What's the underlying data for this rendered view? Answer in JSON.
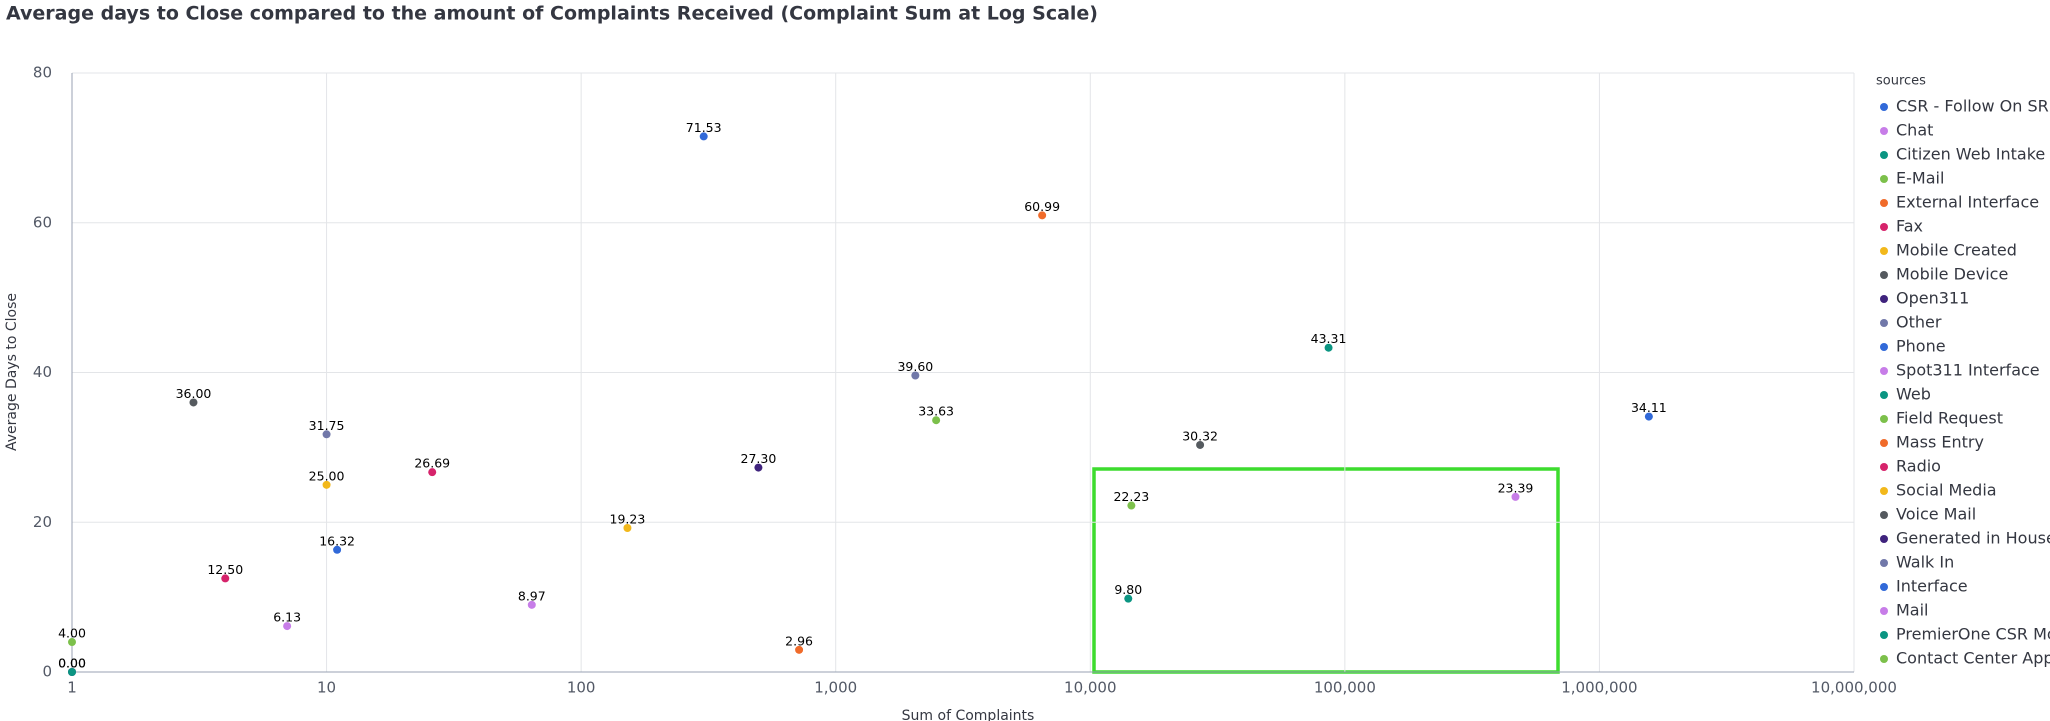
{
  "chart_data": {
    "type": "scatter",
    "title": "Average days to Close compared to the amount of Complaints Received (Complaint Sum at Log Scale)",
    "x_label": "Sum of Complaints",
    "y_label": "Average Days to Close",
    "legend_title": "sources",
    "legend": "right",
    "grid": true,
    "xscale": "log",
    "xlim": [
      1,
      10000000
    ],
    "xticks": [
      1,
      10,
      100,
      {
        "value": 1000,
        "label": "1,000"
      },
      {
        "value": 10000,
        "label": "10,000"
      },
      {
        "value": 100000,
        "label": "100,000"
      },
      {
        "value": 1000000,
        "label": "1,000,000"
      },
      {
        "value": 10000000,
        "label": "10,000,000"
      }
    ],
    "ylim": [
      0,
      80
    ],
    "yticks": [
      0,
      20,
      40,
      60,
      80
    ],
    "series": [
      {
        "name": "CSR - Follow On SR",
        "color": "#3169d8",
        "x": [
          303
        ],
        "values": [
          71.53
        ],
        "value_labels": [
          "71.53"
        ]
      },
      {
        "name": "Chat",
        "color": "#c77de8",
        "x": [
          64
        ],
        "values": [
          8.97
        ],
        "value_labels": [
          "8.97"
        ]
      },
      {
        "name": "Citizen Web Intake",
        "color": "#0b9582",
        "x": [
          14100
        ],
        "values": [
          9.8
        ],
        "value_labels": [
          "9.80"
        ]
      },
      {
        "name": "E-Mail",
        "color": "#7cc04b",
        "x": [
          2480
        ],
        "values": [
          33.63
        ],
        "value_labels": [
          "33.63"
        ]
      },
      {
        "name": "External Interface",
        "color": "#f06b2a",
        "x": [
          6470
        ],
        "values": [
          60.99
        ],
        "value_labels": [
          "60.99"
        ]
      },
      {
        "name": "Fax",
        "color": "#d6236b",
        "x": [
          4
        ],
        "values": [
          12.5
        ],
        "value_labels": [
          "12.50"
        ]
      },
      {
        "name": "Mobile Created",
        "color": "#f2b81b",
        "x": [
          152
        ],
        "values": [
          19.23
        ],
        "value_labels": [
          "19.23"
        ]
      },
      {
        "name": "Mobile Device",
        "color": "#555a5f",
        "x": [
          27000
        ],
        "values": [
          30.32
        ],
        "value_labels": [
          "30.32"
        ]
      },
      {
        "name": "Open311",
        "color": "#3f237d",
        "x": [
          497
        ],
        "values": [
          27.3
        ],
        "value_labels": [
          "27.30"
        ]
      },
      {
        "name": "Other",
        "color": "#7178a9",
        "x": [
          2055
        ],
        "values": [
          39.6
        ],
        "value_labels": [
          "39.60"
        ]
      },
      {
        "name": "Phone",
        "color": "#3169d8",
        "x": [
          1564000
        ],
        "values": [
          34.11
        ],
        "value_labels": [
          "34.11"
        ]
      },
      {
        "name": "Spot311 Interface",
        "color": "#c77de8",
        "x": [
          468000
        ],
        "values": [
          23.39
        ],
        "value_labels": [
          "23.39"
        ]
      },
      {
        "name": "Web",
        "color": "#0b9582",
        "x": [
          86300
        ],
        "values": [
          43.31
        ],
        "value_labels": [
          "43.31"
        ]
      },
      {
        "name": "Field Request",
        "color": "#7cc04b",
        "x": [
          14500
        ],
        "values": [
          22.23
        ],
        "value_labels": [
          "22.23"
        ]
      },
      {
        "name": "Mass Entry",
        "color": "#f06b2a",
        "x": [
          718
        ],
        "values": [
          2.96
        ],
        "value_labels": [
          "2.96"
        ]
      },
      {
        "name": "Radio",
        "color": "#d6236b",
        "x": [
          26
        ],
        "values": [
          26.69
        ],
        "value_labels": [
          "26.69"
        ]
      },
      {
        "name": "Social Media",
        "color": "#f2b81b",
        "x": [
          10
        ],
        "values": [
          25
        ],
        "value_labels": [
          "25.00"
        ]
      },
      {
        "name": "Voice Mail",
        "color": "#555a5f",
        "x": [
          3
        ],
        "values": [
          36
        ],
        "value_labels": [
          "36.00"
        ]
      },
      {
        "name": "Generated in House",
        "color": "#3f237d",
        "x": [
          1
        ],
        "values": [
          0
        ],
        "value_labels": [
          "0.00"
        ]
      },
      {
        "name": "Walk In",
        "color": "#7178a9",
        "x": [
          10
        ],
        "values": [
          31.75
        ],
        "value_labels": [
          "31.75"
        ]
      },
      {
        "name": "Interface",
        "color": "#3169d8",
        "x": [
          11
        ],
        "values": [
          16.32
        ],
        "value_labels": [
          "16.32"
        ]
      },
      {
        "name": "Mail",
        "color": "#c77de8",
        "x": [
          7
        ],
        "values": [
          6.13
        ],
        "value_labels": [
          "6.13"
        ]
      },
      {
        "name": "PremierOne CSR Mob",
        "color": "#0b9582",
        "x": [
          1
        ],
        "values": [
          0
        ],
        "value_labels": [
          "0.00"
        ]
      },
      {
        "name": "Contact Center App",
        "color": "#7cc04b",
        "x": [
          1
        ],
        "values": [
          4
        ],
        "value_labels": [
          "4.00"
        ]
      }
    ]
  }
}
